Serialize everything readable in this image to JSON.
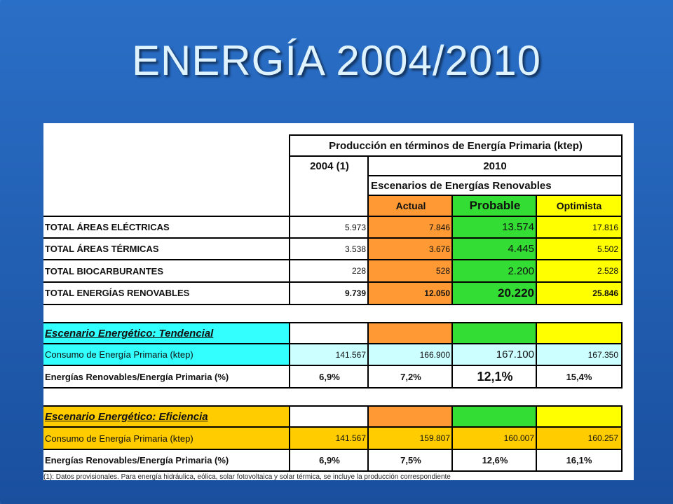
{
  "slide": {
    "title": "ENERGÍA 2004/2010"
  },
  "table": {
    "header_main": "Producción en términos de Energía Primaria (ktep)",
    "header_2004": "2004 (1)",
    "header_2010": "2010",
    "header_scenarios": "Escenarios de Energías Renovables",
    "col_actual": "Actual",
    "col_probable": "Probable",
    "col_optimista": "Optimista",
    "rows": [
      {
        "label": "TOTAL ÁREAS ELÉCTRICAS",
        "y2004": "5.973",
        "actual": "7.846",
        "probable": "13.574",
        "optimista": "17.816"
      },
      {
        "label": "TOTAL ÁREAS TÉRMICAS",
        "y2004": "3.538",
        "actual": "3.676",
        "probable": "4.445",
        "optimista": "5.502"
      },
      {
        "label": "TOTAL BIOCARBURANTES",
        "y2004": "228",
        "actual": "528",
        "probable": "2.200",
        "optimista": "2.528"
      },
      {
        "label": "TOTAL ENERGÍAS RENOVABLES",
        "y2004": "9.739",
        "actual": "12.050",
        "probable": "20.220",
        "optimista": "25.846"
      }
    ],
    "tendencial": {
      "title": "Escenario Energético: Tendencial",
      "consumo_label": "Consumo de Energía Primaria (ktep)",
      "consumo": {
        "y2004": "141.567",
        "actual": "166.900",
        "probable": "167.100",
        "optimista": "167.350"
      },
      "ratio_label": "Energías Renovables/Energía Primaria (%)",
      "ratio": {
        "y2004": "6,9%",
        "actual": "7,2%",
        "probable": "12,1%",
        "optimista": "15,4%"
      }
    },
    "eficiencia": {
      "title": "Escenario Energético: Eficiencia",
      "consumo_label": "Consumo de Energía Primaria (ktep)",
      "consumo": {
        "y2004": "141.567",
        "actual": "159.807",
        "probable": "160.007",
        "optimista": "160.257"
      },
      "ratio_label": "Energías Renovables/Energía Primaria (%)",
      "ratio": {
        "y2004": "6,9%",
        "actual": "7,5%",
        "probable": "12,6%",
        "optimista": "16,1%"
      }
    },
    "footnote": "(1): Datos provisionales. Para energía hidráulica, eólica, solar fotovoltaica y solar térmica, se incluye la producción correspondiente"
  }
}
